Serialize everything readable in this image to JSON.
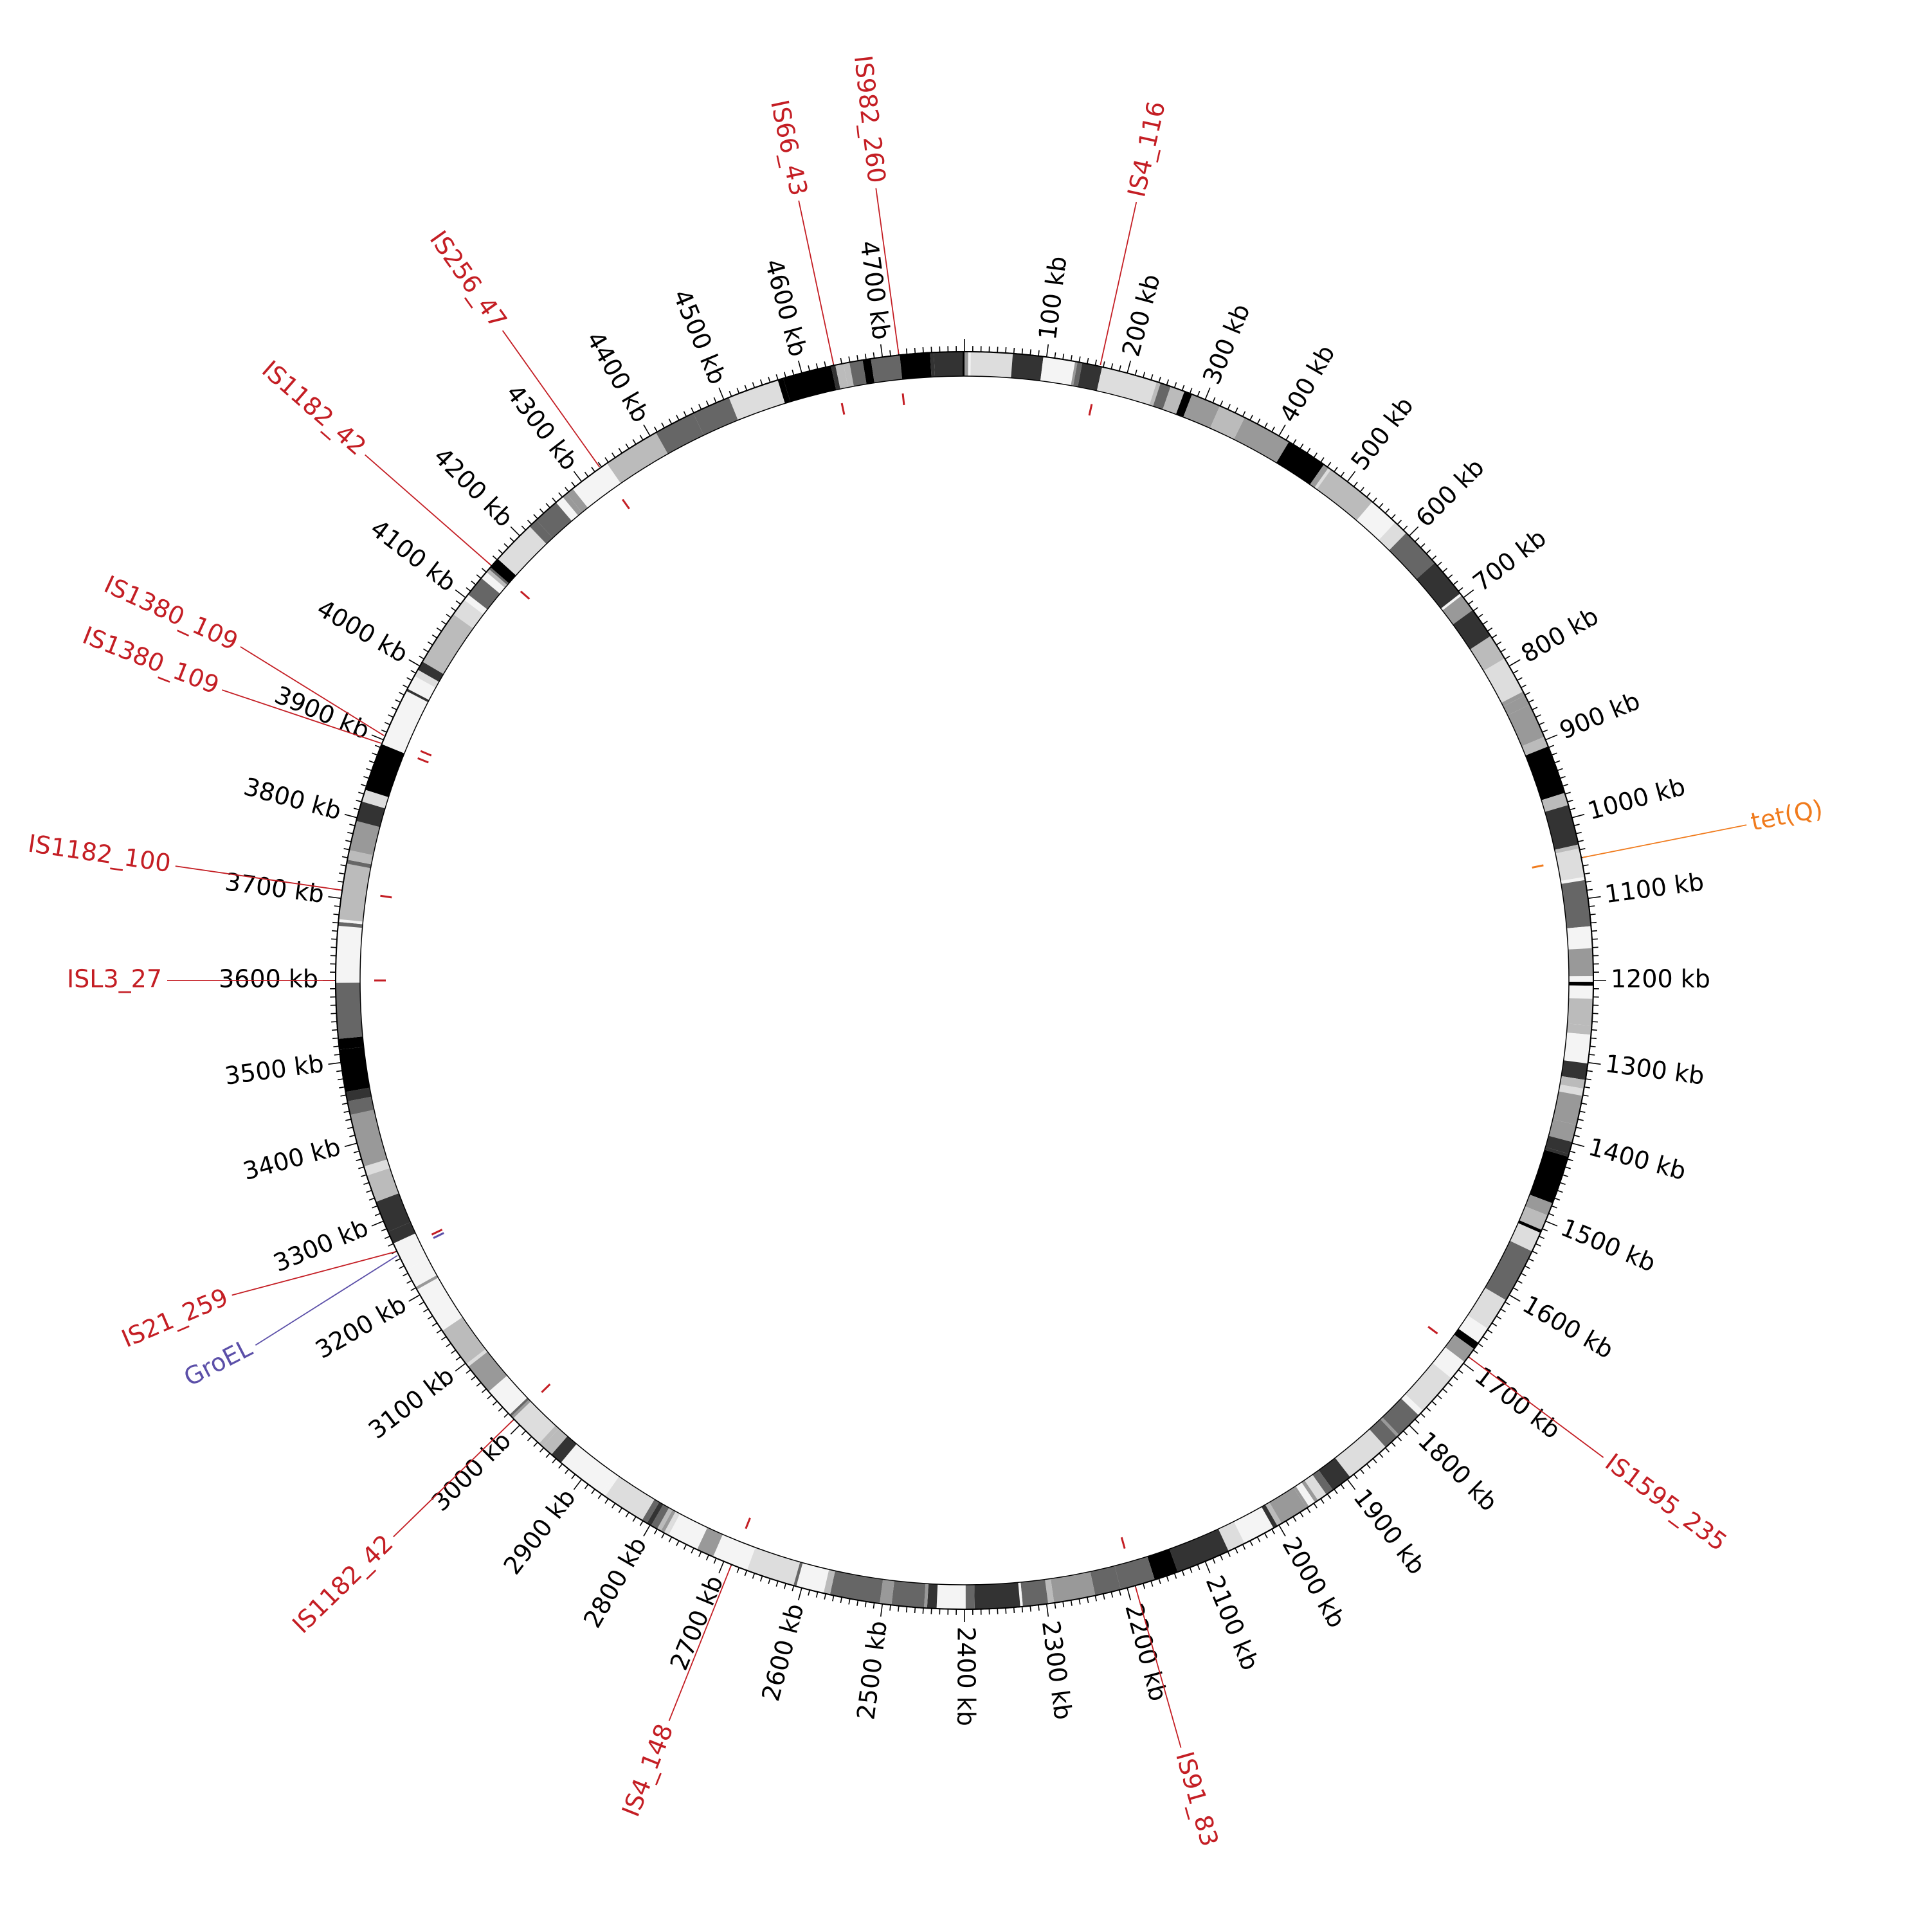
{
  "genome": {
    "length_kb": 4800,
    "tick_labels": [
      "100 kb",
      "200 kb",
      "300 kb",
      "400 kb",
      "500 kb",
      "600 kb",
      "700 kb",
      "800 kb",
      "900 kb",
      "1000 kb",
      "1100 kb",
      "1200 kb",
      "1300 kb",
      "1400 kb",
      "1500 kb",
      "1600 kb",
      "1700 kb",
      "1800 kb",
      "1900 kb",
      "2000 kb",
      "2100 kb",
      "2200 kb",
      "2300 kb",
      "2400 kb",
      "2500 kb",
      "2600 kb",
      "2700 kb",
      "2800 kb",
      "2900 kb",
      "3000 kb",
      "3100 kb",
      "3200 kb",
      "3300 kb",
      "3400 kb",
      "3500 kb",
      "3600 kb",
      "3700 kb",
      "3800 kb",
      "3900 kb",
      "4000 kb",
      "4100 kb",
      "4200 kb",
      "4300 kb",
      "4400 kb",
      "4500 kb",
      "4600 kb",
      "4700 kb"
    ]
  },
  "colors": {
    "is_element": "#c41e24",
    "resistance_gene": "#f07b1d",
    "groel": "#5b4fa8",
    "gc_content": "#6fbf66",
    "gc_skew_positive": "#f47a5a",
    "gc_skew_negative": "#7fb7de",
    "inner_blocks": "#0c3f86",
    "cds": "#9e9e9e",
    "ideogram_dark": "#000000"
  },
  "annotations": [
    {
      "label": "IS4_116",
      "kb": 166,
      "type": "is_element"
    },
    {
      "label": "IS982_260",
      "kb": 4720,
      "type": "is_element"
    },
    {
      "label": "IS66_43",
      "kb": 4640,
      "type": "is_element"
    },
    {
      "label": "IS256_47",
      "kb": 4328,
      "type": "is_element"
    },
    {
      "label": "IS1182_42",
      "kb": 4150,
      "type": "is_element"
    },
    {
      "label": "IS1380_109",
      "kb": 3905,
      "type": "is_element"
    },
    {
      "label": "IS1380_109",
      "kb": 3895,
      "type": "is_element"
    },
    {
      "label": "IS1182_100",
      "kb": 3710,
      "type": "is_element"
    },
    {
      "label": "ISL3_27",
      "kb": 3600,
      "type": "is_element"
    },
    {
      "label": "IS21_259",
      "kb": 3260,
      "type": "is_element"
    },
    {
      "label": "GroEL",
      "kb": 3255,
      "type": "groel"
    },
    {
      "label": "IS1182_42",
      "kb": 3010,
      "type": "is_element"
    },
    {
      "label": "IS4_148",
      "kb": 2690,
      "type": "is_element"
    },
    {
      "label": "IS91_83",
      "kb": 2190,
      "type": "is_element"
    },
    {
      "label": "IS1595_235",
      "kb": 1690,
      "type": "is_element"
    },
    {
      "label": "tet(Q)",
      "kb": 1050,
      "type": "resistance_gene"
    }
  ]
}
